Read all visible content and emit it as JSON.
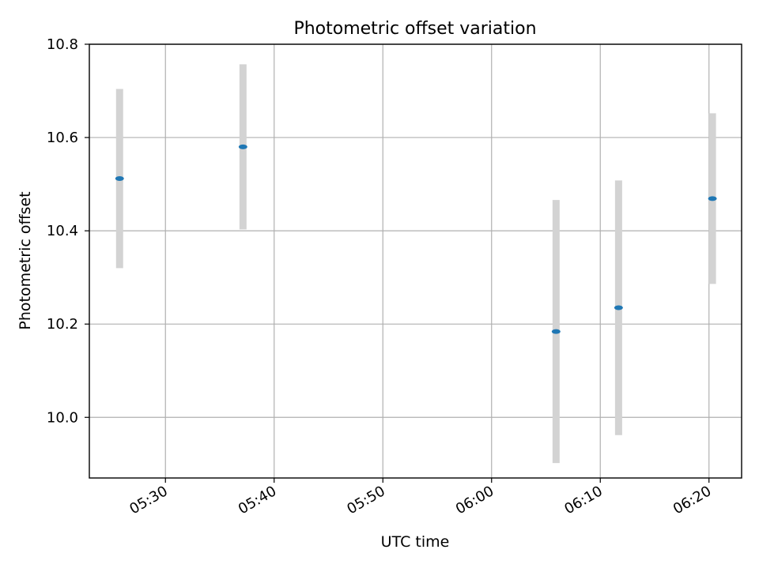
{
  "chart_data": {
    "type": "scatter",
    "title": "Photometric offset variation",
    "xlabel": "UTC time",
    "ylabel": "Photometric offset",
    "x_axis": {
      "kind": "time",
      "range": [
        "05:23",
        "06:23"
      ],
      "ticks": [
        "05:30",
        "05:40",
        "05:50",
        "06:00",
        "06:10",
        "06:20"
      ]
    },
    "y_axis": {
      "range": [
        9.87,
        10.8
      ],
      "ticks": [
        10.0,
        10.2,
        10.4,
        10.6,
        10.8
      ],
      "tick_labels": [
        "10.0",
        "10.2",
        "10.4",
        "10.6",
        "10.8"
      ]
    },
    "grid": true,
    "series": [
      {
        "marker_color": "#1f77b4",
        "errorbar_color": "#d3d3d3",
        "points": [
          {
            "x": "05:25:47",
            "y": 10.512,
            "yerr": 0.192
          },
          {
            "x": "05:37:08",
            "y": 10.58,
            "yerr": 0.177
          },
          {
            "x": "06:05:56",
            "y": 10.184,
            "yerr": 0.282
          },
          {
            "x": "06:11:41",
            "y": 10.235,
            "yerr": 0.273
          },
          {
            "x": "06:20:19",
            "y": 10.469,
            "yerr": 0.183
          }
        ]
      }
    ]
  }
}
